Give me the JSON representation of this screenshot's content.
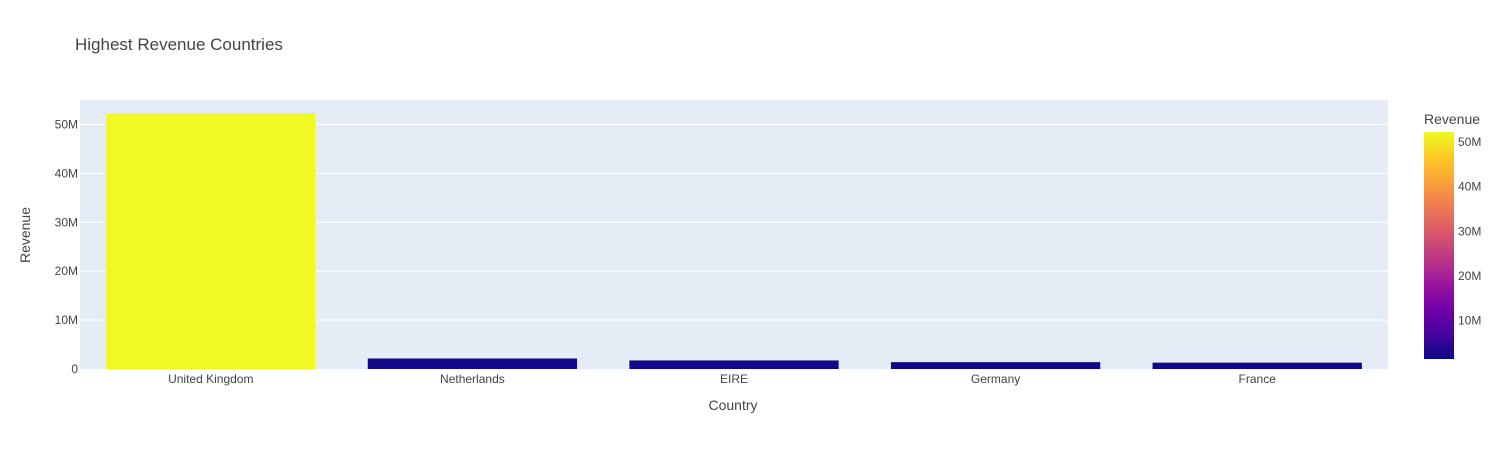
{
  "chart_data": {
    "type": "bar",
    "title": "Highest Revenue Countries",
    "xlabel": "Country",
    "ylabel": "Revenue",
    "categories": [
      "United Kingdom",
      "Netherlands",
      "EIRE",
      "Germany",
      "France"
    ],
    "values": [
      52300000,
      2150000,
      1750000,
      1400000,
      1300000
    ],
    "ylim": [
      0,
      55000000
    ],
    "y_ticks": [
      0,
      10000000,
      20000000,
      30000000,
      40000000,
      50000000
    ],
    "y_tick_labels": [
      "0",
      "10M",
      "20M",
      "30M",
      "40M",
      "50M"
    ],
    "grid": true,
    "colorbar": {
      "title": "Revenue",
      "range": [
        1300000,
        52300000
      ],
      "ticks": [
        10000000,
        20000000,
        30000000,
        40000000,
        50000000
      ],
      "tick_labels": [
        "10M",
        "20M",
        "30M",
        "40M",
        "50M"
      ],
      "colorscale": [
        "#0d0887",
        "#46039f",
        "#7201a8",
        "#9c179e",
        "#bd3786",
        "#d8576b",
        "#ed7953",
        "#fb9f3a",
        "#fdca26",
        "#f0f921"
      ]
    },
    "colors": {
      "plot_bg": "#e5ecf6",
      "grid": "#ffffff",
      "text": "#444444"
    }
  }
}
